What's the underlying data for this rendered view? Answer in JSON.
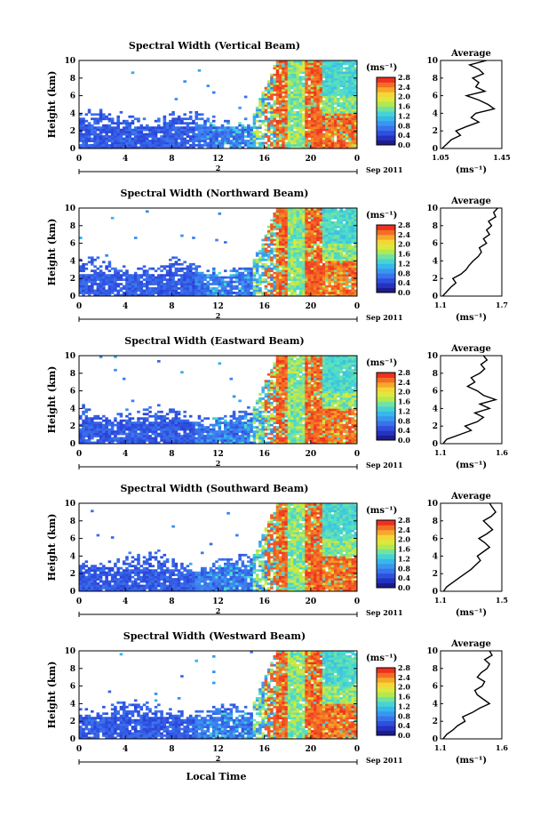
{
  "figure": {
    "xaxis_title": "Local Time",
    "date_label": "Sep 2011",
    "day_label": "2",
    "avg_title": "Average",
    "height_label": "Height (km)",
    "unit_label": "(ms⁻¹)"
  },
  "chart_data": [
    {
      "type": "heatmap",
      "title": "Spectral Width (Vertical Beam)",
      "xlabel": "Local Time",
      "ylabel": "Height (km)",
      "xlim": [
        0,
        24
      ],
      "ylim": [
        0,
        10
      ],
      "x_ticks": [
        "0",
        "4",
        "8",
        "12",
        "16",
        "20",
        "0"
      ],
      "y_ticks": [
        "0",
        "2",
        "4",
        "6",
        "8",
        "10"
      ],
      "colorbar": {
        "label": "(ms⁻¹)",
        "ticks": [
          "0.0",
          "0.4",
          "0.8",
          "1.2",
          "1.6",
          "2.0",
          "2.4",
          "2.8"
        ],
        "range": [
          0,
          2.8
        ]
      },
      "average": {
        "title": "Average",
        "xlim": [
          1.05,
          1.45
        ],
        "x_ticks": [
          "1.05",
          "1.45"
        ],
        "xlabel": "(ms⁻¹)",
        "heights": [
          0,
          0.5,
          1,
          1.5,
          2,
          2.5,
          3,
          3.5,
          4,
          4.5,
          5,
          5.5,
          6,
          6.5,
          7,
          7.5,
          8,
          8.5,
          9,
          9.5,
          10
        ],
        "values": [
          1.06,
          1.09,
          1.12,
          1.18,
          1.15,
          1.22,
          1.3,
          1.25,
          1.28,
          1.4,
          1.36,
          1.3,
          1.22,
          1.34,
          1.28,
          1.3,
          1.26,
          1.33,
          1.3,
          1.24,
          1.35
        ]
      }
    },
    {
      "type": "heatmap",
      "title": "Spectral Width (Northward Beam)",
      "xlabel": "Local Time",
      "ylabel": "Height (km)",
      "xlim": [
        0,
        24
      ],
      "ylim": [
        0,
        10
      ],
      "x_ticks": [
        "0",
        "4",
        "8",
        "12",
        "16",
        "20",
        "0"
      ],
      "y_ticks": [
        "0",
        "2",
        "4",
        "6",
        "8",
        "10"
      ],
      "colorbar": {
        "label": "(ms⁻¹)",
        "ticks": [
          "0.0",
          "0.4",
          "0.8",
          "1.2",
          "1.6",
          "2.0",
          "2.4",
          "2.8"
        ],
        "range": [
          0,
          2.8
        ]
      },
      "average": {
        "title": "Average",
        "xlim": [
          1.1,
          1.7
        ],
        "x_ticks": [
          "1.1",
          "1.7"
        ],
        "xlabel": "(ms⁻¹)",
        "heights": [
          0,
          0.5,
          1,
          1.5,
          2,
          2.5,
          3,
          3.5,
          4,
          4.5,
          5,
          5.5,
          6,
          6.5,
          7,
          7.5,
          8,
          8.5,
          9,
          9.5,
          10
        ],
        "values": [
          1.12,
          1.16,
          1.2,
          1.25,
          1.22,
          1.3,
          1.35,
          1.38,
          1.42,
          1.47,
          1.5,
          1.48,
          1.55,
          1.52,
          1.58,
          1.55,
          1.6,
          1.57,
          1.64,
          1.62,
          1.66
        ]
      }
    },
    {
      "type": "heatmap",
      "title": "Spectral Width (Eastward Beam)",
      "xlabel": "Local Time",
      "ylabel": "Height (km)",
      "xlim": [
        0,
        24
      ],
      "ylim": [
        0,
        10
      ],
      "x_ticks": [
        "0",
        "4",
        "8",
        "12",
        "16",
        "20",
        "0"
      ],
      "y_ticks": [
        "0",
        "2",
        "4",
        "6",
        "8",
        "10"
      ],
      "colorbar": {
        "label": "(ms⁻¹)",
        "ticks": [
          "0.0",
          "0.4",
          "0.8",
          "1.2",
          "1.6",
          "2.0",
          "2.4",
          "2.8"
        ],
        "range": [
          0,
          2.8
        ]
      },
      "average": {
        "title": "Average",
        "xlim": [
          1.1,
          1.6
        ],
        "x_ticks": [
          "1.1",
          "1.6"
        ],
        "xlabel": "(ms⁻¹)",
        "heights": [
          0,
          0.5,
          1,
          1.5,
          2,
          2.5,
          3,
          3.5,
          4,
          4.5,
          5,
          5.5,
          6,
          6.5,
          7,
          7.5,
          8,
          8.5,
          9,
          9.5,
          10
        ],
        "values": [
          1.12,
          1.15,
          1.25,
          1.35,
          1.3,
          1.4,
          1.45,
          1.38,
          1.5,
          1.42,
          1.55,
          1.45,
          1.4,
          1.32,
          1.38,
          1.35,
          1.42,
          1.46,
          1.43,
          1.48,
          1.45
        ]
      }
    },
    {
      "type": "heatmap",
      "title": "Spectral Width (Southward Beam)",
      "xlabel": "Local Time",
      "ylabel": "Height (km)",
      "xlim": [
        0,
        24
      ],
      "ylim": [
        0,
        10
      ],
      "x_ticks": [
        "0",
        "4",
        "8",
        "12",
        "16",
        "20",
        "0"
      ],
      "y_ticks": [
        "0",
        "2",
        "4",
        "6",
        "8",
        "10"
      ],
      "colorbar": {
        "label": "(ms⁻¹)",
        "ticks": [
          "0.0",
          "0.4",
          "0.8",
          "1.2",
          "1.6",
          "2.0",
          "2.4",
          "2.8"
        ],
        "range": [
          0,
          2.8
        ]
      },
      "average": {
        "title": "Average",
        "xlim": [
          1.1,
          1.5
        ],
        "x_ticks": [
          "1.1",
          "1.5"
        ],
        "xlabel": "(ms⁻¹)",
        "heights": [
          0,
          0.5,
          1,
          1.5,
          2,
          2.5,
          3,
          3.5,
          4,
          4.5,
          5,
          5.5,
          6,
          6.5,
          7,
          7.5,
          8,
          8.5,
          9,
          9.5,
          10
        ],
        "values": [
          1.12,
          1.14,
          1.18,
          1.22,
          1.26,
          1.3,
          1.33,
          1.36,
          1.34,
          1.38,
          1.42,
          1.39,
          1.35,
          1.4,
          1.44,
          1.41,
          1.38,
          1.43,
          1.46,
          1.44,
          1.42
        ]
      }
    },
    {
      "type": "heatmap",
      "title": "Spectral Width (Westward Beam)",
      "xlabel": "Local Time",
      "ylabel": "Height (km)",
      "xlim": [
        0,
        24
      ],
      "ylim": [
        0,
        10
      ],
      "x_ticks": [
        "0",
        "4",
        "8",
        "12",
        "16",
        "20",
        "0"
      ],
      "y_ticks": [
        "0",
        "2",
        "4",
        "6",
        "8",
        "10"
      ],
      "colorbar": {
        "label": "(ms⁻¹)",
        "ticks": [
          "0.0",
          "0.4",
          "0.8",
          "1.2",
          "1.6",
          "2.0",
          "2.4",
          "2.8"
        ],
        "range": [
          0,
          2.8
        ]
      },
      "average": {
        "title": "Average",
        "xlim": [
          1.1,
          1.6
        ],
        "x_ticks": [
          "1.1",
          "1.6"
        ],
        "xlabel": "(ms⁻¹)",
        "heights": [
          0,
          0.5,
          1,
          1.5,
          2,
          2.5,
          3,
          3.5,
          4,
          4.5,
          5,
          5.5,
          6,
          6.5,
          7,
          7.5,
          8,
          8.5,
          9,
          9.5,
          10
        ],
        "values": [
          1.12,
          1.15,
          1.2,
          1.24,
          1.3,
          1.28,
          1.36,
          1.42,
          1.5,
          1.45,
          1.4,
          1.38,
          1.44,
          1.46,
          1.4,
          1.43,
          1.48,
          1.5,
          1.46,
          1.52,
          1.5
        ]
      }
    }
  ]
}
